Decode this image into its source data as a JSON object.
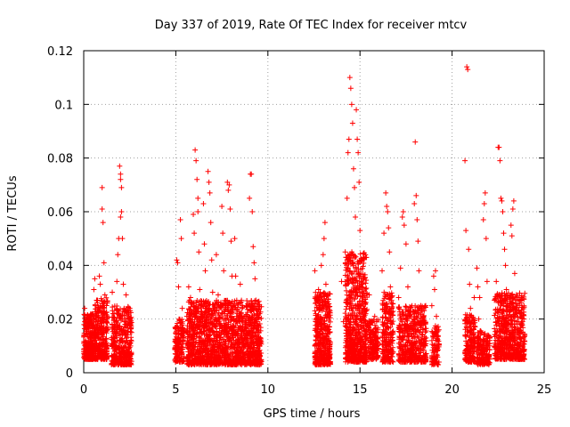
{
  "chart_data": {
    "type": "scatter",
    "title": "Day 337 of 2019, Rate Of TEC Index for receiver mtcv",
    "xlabel": "GPS time / hours",
    "ylabel": "ROTI / TECUs",
    "xlim": [
      0,
      24
    ],
    "ylim": [
      0,
      0.12
    ],
    "xticks": [
      "0",
      "5",
      "10",
      "15",
      "20",
      "25"
    ],
    "yticks": [
      "0",
      "0.02",
      "0.04",
      "0.06",
      "0.08",
      "0.1",
      "0.12"
    ],
    "grid": true,
    "marker": "plus",
    "color": "#ff0000",
    "series": [
      {
        "values_note": "",
        "points": [
          [
            0.0,
            0.011
          ],
          [
            0.05,
            0.024
          ],
          [
            0.1,
            0.008
          ],
          [
            0.15,
            0.016
          ],
          [
            0.2,
            0.006
          ],
          [
            0.25,
            0.012
          ],
          [
            0.3,
            0.019
          ],
          [
            0.35,
            0.009
          ],
          [
            0.4,
            0.014
          ],
          [
            0.45,
            0.005
          ],
          [
            0.5,
            0.022
          ],
          [
            0.55,
            0.031
          ],
          [
            0.6,
            0.035
          ],
          [
            0.65,
            0.012
          ],
          [
            0.7,
            0.027
          ],
          [
            0.75,
            0.018
          ],
          [
            0.8,
            0.009
          ],
          [
            0.85,
            0.036
          ],
          [
            0.9,
            0.033
          ],
          [
            0.95,
            0.015
          ],
          [
            1.0,
            0.069
          ],
          [
            1.0,
            0.061
          ],
          [
            1.05,
            0.056
          ],
          [
            1.1,
            0.041
          ],
          [
            1.15,
            0.029
          ],
          [
            1.2,
            0.011
          ],
          [
            1.25,
            0.007
          ],
          [
            1.3,
            0.017
          ],
          [
            1.55,
            0.03
          ],
          [
            1.6,
            0.012
          ],
          [
            1.65,
            0.022
          ],
          [
            1.7,
            0.009
          ],
          [
            1.75,
            0.015
          ],
          [
            1.8,
            0.034
          ],
          [
            1.85,
            0.044
          ],
          [
            1.9,
            0.05
          ],
          [
            1.95,
            0.077
          ],
          [
            2.0,
            0.074
          ],
          [
            2.0,
            0.072
          ],
          [
            2.05,
            0.069
          ],
          [
            2.05,
            0.06
          ],
          [
            2.0,
            0.058
          ],
          [
            2.1,
            0.05
          ],
          [
            2.15,
            0.033
          ],
          [
            2.2,
            0.015
          ],
          [
            2.25,
            0.023
          ],
          [
            2.3,
            0.029
          ],
          [
            2.35,
            0.012
          ],
          [
            2.4,
            0.018
          ],
          [
            2.45,
            0.006
          ],
          [
            2.5,
            0.024
          ],
          [
            2.55,
            0.003
          ],
          [
            2.6,
            0.015
          ],
          [
            4.95,
            0.009
          ],
          [
            5.0,
            0.017
          ],
          [
            5.05,
            0.042
          ],
          [
            5.1,
            0.041
          ],
          [
            5.15,
            0.032
          ],
          [
            5.2,
            0.006
          ],
          [
            5.25,
            0.057
          ],
          [
            5.3,
            0.05
          ],
          [
            5.35,
            0.024
          ],
          [
            5.4,
            0.013
          ],
          [
            5.6,
            0.021
          ],
          [
            5.7,
            0.032
          ],
          [
            5.75,
            0.011
          ],
          [
            5.8,
            0.028
          ],
          [
            5.85,
            0.019
          ],
          [
            5.9,
            0.007
          ],
          [
            5.95,
            0.059
          ],
          [
            6.0,
            0.052
          ],
          [
            6.05,
            0.083
          ],
          [
            6.1,
            0.079
          ],
          [
            6.15,
            0.072
          ],
          [
            6.2,
            0.065
          ],
          [
            6.2,
            0.06
          ],
          [
            6.25,
            0.045
          ],
          [
            6.3,
            0.031
          ],
          [
            6.35,
            0.021
          ],
          [
            6.4,
            0.015
          ],
          [
            6.45,
            0.011
          ],
          [
            6.5,
            0.063
          ],
          [
            6.55,
            0.048
          ],
          [
            6.6,
            0.038
          ],
          [
            6.65,
            0.024
          ],
          [
            6.7,
            0.003
          ],
          [
            6.75,
            0.075
          ],
          [
            6.8,
            0.071
          ],
          [
            6.85,
            0.067
          ],
          [
            6.9,
            0.056
          ],
          [
            6.95,
            0.042
          ],
          [
            7.0,
            0.03
          ],
          [
            7.05,
            0.018
          ],
          [
            7.1,
            0.008
          ],
          [
            7.2,
            0.044
          ],
          [
            7.3,
            0.029
          ],
          [
            7.4,
            0.015
          ],
          [
            7.5,
            0.062
          ],
          [
            7.55,
            0.052
          ],
          [
            7.6,
            0.038
          ],
          [
            7.65,
            0.022
          ],
          [
            7.7,
            0.009
          ],
          [
            7.8,
            0.071
          ],
          [
            7.85,
            0.068
          ],
          [
            7.9,
            0.07
          ],
          [
            7.95,
            0.061
          ],
          [
            8.0,
            0.049
          ],
          [
            8.05,
            0.036
          ],
          [
            8.1,
            0.025
          ],
          [
            8.15,
            0.012
          ],
          [
            8.2,
            0.05
          ],
          [
            8.25,
            0.036
          ],
          [
            8.3,
            0.021
          ],
          [
            8.35,
            0.014
          ],
          [
            8.4,
            0.006
          ],
          [
            8.5,
            0.033
          ],
          [
            8.6,
            0.024
          ],
          [
            8.7,
            0.011
          ],
          [
            8.8,
            0.018
          ],
          [
            8.9,
            0.009
          ],
          [
            9.0,
            0.065
          ],
          [
            9.05,
            0.074
          ],
          [
            9.1,
            0.074
          ],
          [
            9.15,
            0.06
          ],
          [
            9.2,
            0.047
          ],
          [
            9.25,
            0.041
          ],
          [
            9.3,
            0.035
          ],
          [
            9.35,
            0.027
          ],
          [
            9.4,
            0.019
          ],
          [
            9.45,
            0.009
          ],
          [
            9.5,
            0.016
          ],
          [
            9.55,
            0.022
          ],
          [
            9.6,
            0.012
          ],
          [
            12.55,
            0.038
          ],
          [
            12.6,
            0.022
          ],
          [
            12.65,
            0.01
          ],
          [
            12.7,
            0.015
          ],
          [
            12.75,
            0.031
          ],
          [
            12.8,
            0.006
          ],
          [
            12.85,
            0.018
          ],
          [
            12.9,
            0.04
          ],
          [
            12.95,
            0.025
          ],
          [
            13.0,
            0.044
          ],
          [
            13.05,
            0.05
          ],
          [
            13.1,
            0.056
          ],
          [
            13.15,
            0.033
          ],
          [
            13.2,
            0.017
          ],
          [
            13.25,
            0.008
          ],
          [
            13.3,
            0.021
          ],
          [
            14.0,
            0.034
          ],
          [
            14.1,
            0.019
          ],
          [
            14.2,
            0.045
          ],
          [
            14.3,
            0.065
          ],
          [
            14.35,
            0.082
          ],
          [
            14.4,
            0.087
          ],
          [
            14.45,
            0.11
          ],
          [
            14.5,
            0.106
          ],
          [
            14.55,
            0.1
          ],
          [
            14.6,
            0.093
          ],
          [
            14.65,
            0.076
          ],
          [
            14.7,
            0.069
          ],
          [
            14.75,
            0.058
          ],
          [
            14.8,
            0.098
          ],
          [
            14.85,
            0.087
          ],
          [
            14.9,
            0.082
          ],
          [
            14.95,
            0.071
          ],
          [
            15.0,
            0.053
          ],
          [
            15.05,
            0.042
          ],
          [
            15.1,
            0.032
          ],
          [
            15.15,
            0.021
          ],
          [
            15.2,
            0.011
          ],
          [
            15.25,
            0.006
          ],
          [
            15.4,
            0.018
          ],
          [
            15.5,
            0.029
          ],
          [
            15.6,
            0.012
          ],
          [
            15.7,
            0.007
          ],
          [
            15.8,
            0.021
          ],
          [
            15.9,
            0.015
          ],
          [
            16.2,
            0.038
          ],
          [
            16.3,
            0.052
          ],
          [
            16.4,
            0.067
          ],
          [
            16.45,
            0.062
          ],
          [
            16.5,
            0.06
          ],
          [
            16.55,
            0.054
          ],
          [
            16.6,
            0.045
          ],
          [
            16.65,
            0.032
          ],
          [
            16.7,
            0.022
          ],
          [
            16.75,
            0.011
          ],
          [
            16.8,
            0.004
          ],
          [
            17.1,
            0.028
          ],
          [
            17.2,
            0.039
          ],
          [
            17.3,
            0.058
          ],
          [
            17.35,
            0.06
          ],
          [
            17.4,
            0.055
          ],
          [
            17.5,
            0.048
          ],
          [
            17.6,
            0.032
          ],
          [
            17.7,
            0.017
          ],
          [
            17.8,
            0.008
          ],
          [
            17.95,
            0.063
          ],
          [
            18.0,
            0.086
          ],
          [
            18.05,
            0.066
          ],
          [
            18.1,
            0.057
          ],
          [
            18.15,
            0.049
          ],
          [
            18.2,
            0.038
          ],
          [
            18.3,
            0.025
          ],
          [
            18.4,
            0.014
          ],
          [
            18.5,
            0.006
          ],
          [
            18.9,
            0.025
          ],
          [
            19.0,
            0.036
          ],
          [
            19.05,
            0.031
          ],
          [
            19.1,
            0.038
          ],
          [
            19.15,
            0.021
          ],
          [
            19.2,
            0.012
          ],
          [
            19.25,
            0.003
          ],
          [
            20.7,
            0.079
          ],
          [
            20.75,
            0.053
          ],
          [
            20.8,
            0.114
          ],
          [
            20.85,
            0.113
          ],
          [
            20.9,
            0.046
          ],
          [
            20.95,
            0.033
          ],
          [
            21.0,
            0.024
          ],
          [
            21.05,
            0.012
          ],
          [
            21.1,
            0.006
          ],
          [
            21.15,
            0.018
          ],
          [
            21.2,
            0.028
          ],
          [
            21.25,
            0.011
          ],
          [
            21.35,
            0.039
          ],
          [
            21.4,
            0.032
          ],
          [
            21.45,
            0.02
          ],
          [
            21.5,
            0.028
          ],
          [
            21.55,
            0.011
          ],
          [
            21.6,
            0.015
          ],
          [
            21.7,
            0.057
          ],
          [
            21.75,
            0.063
          ],
          [
            21.8,
            0.067
          ],
          [
            21.85,
            0.05
          ],
          [
            21.9,
            0.034
          ],
          [
            21.95,
            0.014
          ],
          [
            22.0,
            0.006
          ],
          [
            22.05,
            0.012
          ],
          [
            22.3,
            0.027
          ],
          [
            22.4,
            0.034
          ],
          [
            22.5,
            0.084
          ],
          [
            22.55,
            0.084
          ],
          [
            22.6,
            0.079
          ],
          [
            22.65,
            0.065
          ],
          [
            22.7,
            0.064
          ],
          [
            22.75,
            0.06
          ],
          [
            22.8,
            0.052
          ],
          [
            22.85,
            0.046
          ],
          [
            22.9,
            0.04
          ],
          [
            22.95,
            0.031
          ],
          [
            23.0,
            0.025
          ],
          [
            23.05,
            0.018
          ],
          [
            23.1,
            0.012
          ],
          [
            23.15,
            0.007
          ],
          [
            23.2,
            0.055
          ],
          [
            23.25,
            0.051
          ],
          [
            23.3,
            0.061
          ],
          [
            23.35,
            0.064
          ],
          [
            23.4,
            0.037
          ],
          [
            23.45,
            0.027
          ],
          [
            23.5,
            0.019
          ],
          [
            23.55,
            0.011
          ],
          [
            23.6,
            0.023
          ],
          [
            23.65,
            0.013
          ],
          [
            23.7,
            0.018
          ],
          [
            23.75,
            0.026
          ],
          [
            23.8,
            0.009
          ],
          [
            23.85,
            0.015
          ],
          [
            23.9,
            0.02
          ]
        ]
      }
    ],
    "bands": [
      {
        "x0": 0.0,
        "x1": 0.6,
        "ymin": 0.005,
        "ymax": 0.022,
        "n": 260
      },
      {
        "x0": 0.6,
        "x1": 1.3,
        "ymin": 0.005,
        "ymax": 0.028,
        "n": 280
      },
      {
        "x0": 1.5,
        "x1": 2.6,
        "ymin": 0.003,
        "ymax": 0.025,
        "n": 380
      },
      {
        "x0": 4.95,
        "x1": 5.45,
        "ymin": 0.004,
        "ymax": 0.02,
        "n": 150
      },
      {
        "x0": 5.6,
        "x1": 9.65,
        "ymin": 0.003,
        "ymax": 0.027,
        "n": 1500
      },
      {
        "x0": 12.55,
        "x1": 13.4,
        "ymin": 0.003,
        "ymax": 0.03,
        "n": 420
      },
      {
        "x0": 14.2,
        "x1": 15.4,
        "ymin": 0.004,
        "ymax": 0.045,
        "n": 650
      },
      {
        "x0": 15.45,
        "x1": 16.0,
        "ymin": 0.005,
        "ymax": 0.02,
        "n": 160
      },
      {
        "x0": 16.2,
        "x1": 16.8,
        "ymin": 0.004,
        "ymax": 0.03,
        "n": 220
      },
      {
        "x0": 17.1,
        "x1": 18.6,
        "ymin": 0.004,
        "ymax": 0.025,
        "n": 460
      },
      {
        "x0": 18.9,
        "x1": 19.3,
        "ymin": 0.003,
        "ymax": 0.018,
        "n": 90
      },
      {
        "x0": 20.7,
        "x1": 21.25,
        "ymin": 0.004,
        "ymax": 0.022,
        "n": 180
      },
      {
        "x0": 21.35,
        "x1": 22.05,
        "ymin": 0.003,
        "ymax": 0.016,
        "n": 170
      },
      {
        "x0": 22.3,
        "x1": 23.95,
        "ymin": 0.005,
        "ymax": 0.03,
        "n": 620
      }
    ]
  }
}
